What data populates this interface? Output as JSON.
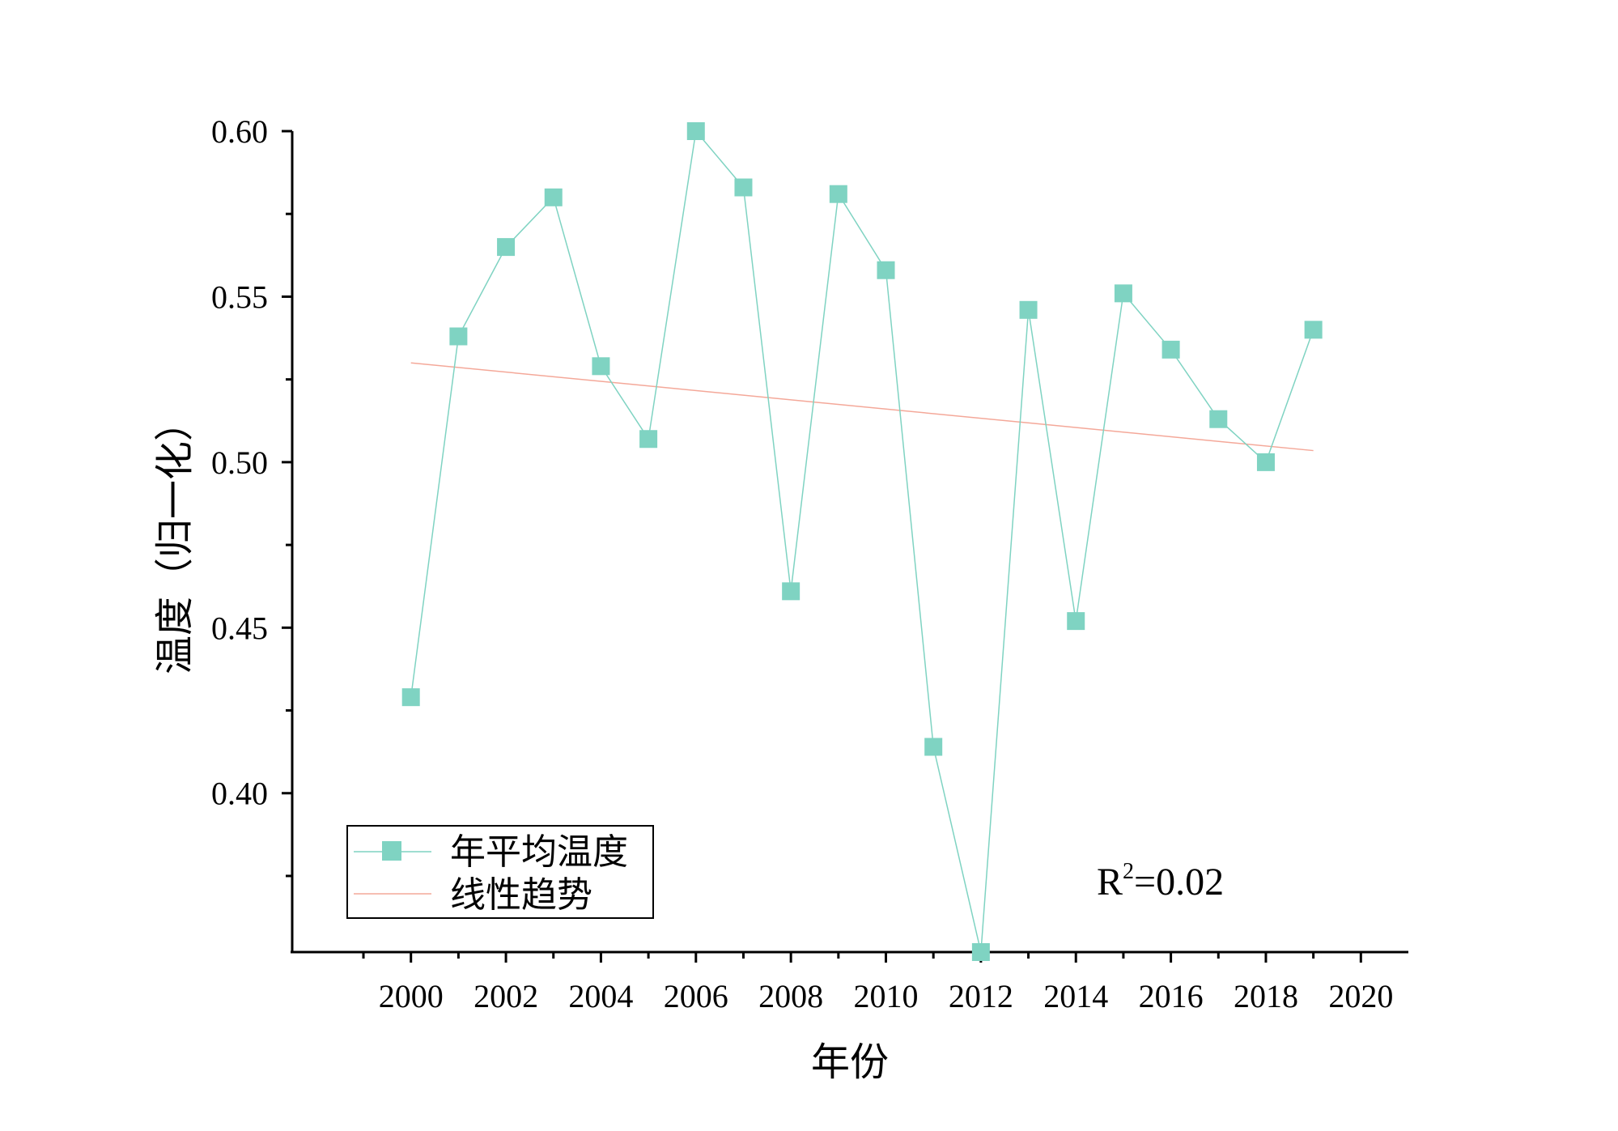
{
  "chart_data": {
    "type": "line",
    "x_axis": {
      "label": "年份",
      "range": [
        1997.5,
        2021
      ],
      "major_ticks": [
        2000,
        2002,
        2004,
        2006,
        2008,
        2010,
        2012,
        2014,
        2016,
        2018,
        2020
      ],
      "minor_ticks": [
        1999,
        2001,
        2003,
        2005,
        2007,
        2009,
        2011,
        2013,
        2015,
        2017,
        2019
      ]
    },
    "y_axis": {
      "label": "温度（归一化）",
      "range": [
        0.352,
        0.6
      ],
      "major_ticks": [
        0.4,
        0.45,
        0.5,
        0.55,
        0.6
      ],
      "minor_ticks": [
        0.375,
        0.425,
        0.475,
        0.525,
        0.575
      ],
      "tick_labels": [
        "0.40",
        "0.45",
        "0.50",
        "0.55",
        "0.60"
      ]
    },
    "series": [
      {
        "name": "年平均温度",
        "type": "line+markers",
        "color": "#7fd3c2",
        "x": [
          2000,
          2001,
          2002,
          2003,
          2004,
          2005,
          2006,
          2007,
          2008,
          2009,
          2010,
          2011,
          2012,
          2013,
          2014,
          2015,
          2016,
          2017,
          2018,
          2019
        ],
        "y": [
          0.429,
          0.538,
          0.565,
          0.58,
          0.529,
          0.507,
          0.6,
          0.583,
          0.461,
          0.581,
          0.558,
          0.414,
          0.352,
          0.546,
          0.452,
          0.551,
          0.534,
          0.513,
          0.5,
          0.54
        ]
      },
      {
        "name": "线性趋势",
        "type": "line",
        "color": "#f4a899",
        "x": [
          2000,
          2019
        ],
        "y": [
          0.53,
          0.5035
        ]
      }
    ],
    "legend": {
      "placement": "bottom-left"
    },
    "annotation": {
      "text": "R",
      "sup": "2",
      "suffix": "=0.02"
    },
    "grid": false
  }
}
